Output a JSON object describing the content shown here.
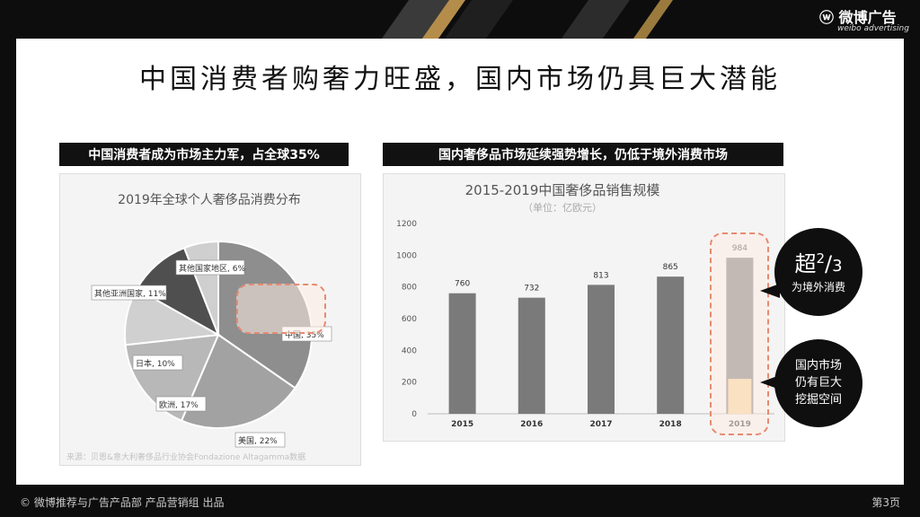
{
  "brand": {
    "name_cn": "微博广告",
    "name_en": "weibo advertising"
  },
  "slide": {
    "title": "中国消费者购奢力旺盛，国内市场仍具巨大潜能",
    "left_banner": "中国消费者成为市场主力军，占全球35%",
    "right_banner": "国内奢侈品市场延续强势增长，仍低于境外消费市场",
    "source": "来源：贝恩&意大利奢侈品行业协会Fondazione Altagamma数据"
  },
  "bubbles": {
    "top_big": "超",
    "top_frac_num": "2",
    "top_frac_den": "3",
    "top_sub": "为境外消费",
    "bottom_lines": [
      "国内市场",
      "仍有巨大",
      "挖掘空间"
    ]
  },
  "footer": {
    "left": "© 微博推荐与广告产品部 产品营销组 出品",
    "right": "第3页"
  },
  "colors": {
    "accent_dashed": "#e58b72",
    "bar": "#7a7a7a",
    "bar_highlight": "#f3d29a"
  },
  "chart_data": [
    {
      "type": "pie",
      "title": "2019年全球个人奢侈品消费分布",
      "slices": [
        {
          "label": "中国, 35%",
          "value": 35
        },
        {
          "label": "美国, 22%",
          "value": 22
        },
        {
          "label": "欧洲, 17%",
          "value": 17
        },
        {
          "label": "日本, 10%",
          "value": 10
        },
        {
          "label": "其他亚洲国家, 11%",
          "value": 11
        },
        {
          "label": "其他国家地区, 6%",
          "value": 6
        }
      ],
      "slice_colors": [
        "#8e8e8e",
        "#a2a2a2",
        "#b8b8b8",
        "#d0d0d0",
        "#4f4f4f",
        "#cfcfcf"
      ]
    },
    {
      "type": "bar",
      "title": "2015-2019中国奢侈品销售规模",
      "subtitle": "（单位：亿欧元）",
      "categories": [
        "2015",
        "2016",
        "2017",
        "2018",
        "2019"
      ],
      "values": [
        760,
        732,
        813,
        865,
        984
      ],
      "ylim": [
        0,
        1200
      ],
      "yticks": [
        "0",
        "200",
        "400",
        "600",
        "800",
        "1000",
        "1200"
      ],
      "grid": false
    }
  ]
}
